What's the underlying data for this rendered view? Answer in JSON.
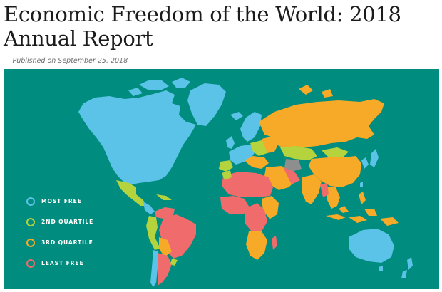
{
  "article": {
    "title_line1": "Economic Freedom of the World: 2018",
    "title_line2": "Annual Report",
    "published": "— Published on September 25, 2018"
  },
  "map": {
    "ocean_color": "#008C7E",
    "legend": [
      {
        "label": "MOST FREE",
        "color": "#5BC3E8"
      },
      {
        "label": "2ND QUARTILE",
        "color": "#B5D33D"
      },
      {
        "label": "3RD QUARTILE",
        "color": "#F7A928"
      },
      {
        "label": "LEAST FREE",
        "color": "#F06B6B"
      }
    ],
    "no_data_color": "#8E8E8E"
  }
}
